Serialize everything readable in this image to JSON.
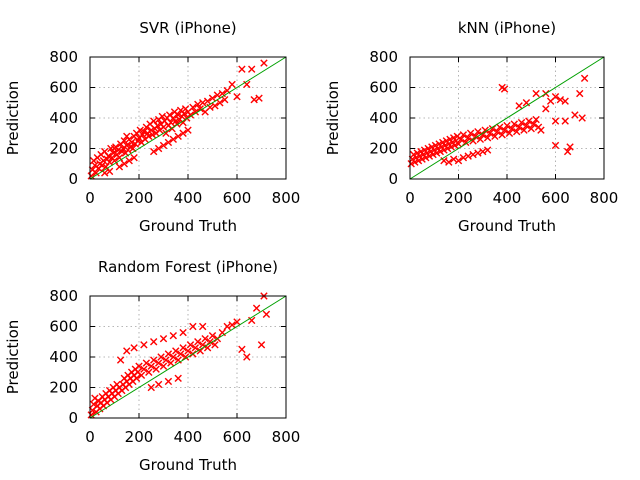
{
  "chart_data": [
    {
      "type": "scatter",
      "title": "SVR (iPhone)",
      "xlabel": "Ground Truth",
      "ylabel": "Prediction",
      "xlim": [
        0,
        800
      ],
      "ylim": [
        0,
        800
      ],
      "xticks": [
        "0",
        "200",
        "400",
        "600",
        "800"
      ],
      "yticks": [
        "0",
        "200",
        "400",
        "600",
        "800"
      ],
      "grid": true,
      "marker": "x",
      "marker_color": "#ff0000",
      "reference_line": {
        "from": [
          0,
          0
        ],
        "to": [
          800,
          800
        ],
        "color": "#00a000"
      },
      "points": [
        [
          5,
          20
        ],
        [
          10,
          60
        ],
        [
          15,
          120
        ],
        [
          20,
          90
        ],
        [
          25,
          40
        ],
        [
          30,
          140
        ],
        [
          35,
          70
        ],
        [
          40,
          100
        ],
        [
          45,
          160
        ],
        [
          50,
          90
        ],
        [
          55,
          120
        ],
        [
          60,
          180
        ],
        [
          65,
          80
        ],
        [
          70,
          130
        ],
        [
          75,
          150
        ],
        [
          80,
          110
        ],
        [
          85,
          200
        ],
        [
          90,
          140
        ],
        [
          95,
          170
        ],
        [
          100,
          120
        ],
        [
          105,
          210
        ],
        [
          110,
          160
        ],
        [
          115,
          190
        ],
        [
          120,
          140
        ],
        [
          125,
          230
        ],
        [
          130,
          180
        ],
        [
          135,
          200
        ],
        [
          140,
          250
        ],
        [
          145,
          170
        ],
        [
          150,
          220
        ],
        [
          155,
          190
        ],
        [
          160,
          260
        ],
        [
          165,
          210
        ],
        [
          170,
          240
        ],
        [
          175,
          200
        ],
        [
          180,
          280
        ],
        [
          185,
          230
        ],
        [
          190,
          300
        ],
        [
          195,
          250
        ],
        [
          200,
          270
        ],
        [
          205,
          320
        ],
        [
          210,
          240
        ],
        [
          215,
          290
        ],
        [
          220,
          310
        ],
        [
          225,
          260
        ],
        [
          230,
          340
        ],
        [
          235,
          300
        ],
        [
          240,
          280
        ],
        [
          245,
          360
        ],
        [
          250,
          320
        ],
        [
          255,
          290
        ],
        [
          260,
          380
        ],
        [
          265,
          330
        ],
        [
          270,
          300
        ],
        [
          275,
          350
        ],
        [
          280,
          390
        ],
        [
          285,
          320
        ],
        [
          290,
          360
        ],
        [
          295,
          410
        ],
        [
          300,
          340
        ],
        [
          305,
          380
        ],
        [
          310,
          300
        ],
        [
          315,
          400
        ],
        [
          320,
          350
        ],
        [
          325,
          420
        ],
        [
          330,
          370
        ],
        [
          335,
          330
        ],
        [
          340,
          400
        ],
        [
          345,
          440
        ],
        [
          350,
          380
        ],
        [
          355,
          360
        ],
        [
          360,
          420
        ],
        [
          365,
          390
        ],
        [
          370,
          450
        ],
        [
          375,
          410
        ],
        [
          380,
          370
        ],
        [
          385,
          430
        ],
        [
          390,
          460
        ],
        [
          395,
          400
        ],
        [
          400,
          440
        ],
        [
          410,
          420
        ],
        [
          420,
          470
        ],
        [
          430,
          440
        ],
        [
          440,
          490
        ],
        [
          450,
          460
        ],
        [
          460,
          500
        ],
        [
          470,
          440
        ],
        [
          480,
          510
        ],
        [
          490,
          470
        ],
        [
          500,
          530
        ],
        [
          510,
          480
        ],
        [
          520,
          550
        ],
        [
          530,
          500
        ],
        [
          540,
          560
        ],
        [
          550,
          520
        ],
        [
          560,
          580
        ],
        [
          580,
          620
        ],
        [
          600,
          540
        ],
        [
          620,
          720
        ],
        [
          640,
          620
        ],
        [
          660,
          720
        ],
        [
          670,
          520
        ],
        [
          690,
          530
        ],
        [
          710,
          760
        ],
        [
          260,
          180
        ],
        [
          280,
          200
        ],
        [
          300,
          220
        ],
        [
          320,
          240
        ],
        [
          340,
          260
        ],
        [
          360,
          280
        ],
        [
          380,
          300
        ],
        [
          400,
          320
        ],
        [
          120,
          80
        ],
        [
          140,
          100
        ],
        [
          160,
          120
        ],
        [
          180,
          140
        ],
        [
          60,
          40
        ],
        [
          80,
          50
        ],
        [
          100,
          200
        ],
        [
          150,
          280
        ]
      ]
    },
    {
      "type": "scatter",
      "title": "kNN (iPhone)",
      "xlabel": "Ground Truth",
      "ylabel": "Prediction",
      "xlim": [
        0,
        800
      ],
      "ylim": [
        0,
        800
      ],
      "xticks": [
        "0",
        "200",
        "400",
        "600",
        "800"
      ],
      "yticks": [
        "0",
        "200",
        "400",
        "600",
        "800"
      ],
      "grid": true,
      "marker": "x",
      "marker_color": "#ff0000",
      "reference_line": {
        "from": [
          0,
          0
        ],
        "to": [
          800,
          800
        ],
        "color": "#00a000"
      },
      "points": [
        [
          5,
          100
        ],
        [
          10,
          130
        ],
        [
          15,
          160
        ],
        [
          20,
          110
        ],
        [
          25,
          140
        ],
        [
          30,
          170
        ],
        [
          35,
          120
        ],
        [
          40,
          150
        ],
        [
          45,
          180
        ],
        [
          50,
          130
        ],
        [
          55,
          160
        ],
        [
          60,
          190
        ],
        [
          65,
          140
        ],
        [
          70,
          170
        ],
        [
          75,
          200
        ],
        [
          80,
          150
        ],
        [
          85,
          180
        ],
        [
          90,
          210
        ],
        [
          95,
          160
        ],
        [
          100,
          190
        ],
        [
          105,
          220
        ],
        [
          110,
          170
        ],
        [
          115,
          200
        ],
        [
          120,
          230
        ],
        [
          125,
          180
        ],
        [
          130,
          210
        ],
        [
          135,
          240
        ],
        [
          140,
          190
        ],
        [
          145,
          220
        ],
        [
          150,
          250
        ],
        [
          155,
          200
        ],
        [
          160,
          230
        ],
        [
          165,
          260
        ],
        [
          170,
          210
        ],
        [
          175,
          240
        ],
        [
          180,
          270
        ],
        [
          185,
          220
        ],
        [
          190,
          250
        ],
        [
          195,
          280
        ],
        [
          200,
          230
        ],
        [
          210,
          260
        ],
        [
          220,
          290
        ],
        [
          230,
          240
        ],
        [
          240,
          270
        ],
        [
          250,
          300
        ],
        [
          260,
          250
        ],
        [
          270,
          280
        ],
        [
          280,
          310
        ],
        [
          290,
          260
        ],
        [
          300,
          290
        ],
        [
          310,
          320
        ],
        [
          320,
          270
        ],
        [
          330,
          300
        ],
        [
          340,
          330
        ],
        [
          350,
          280
        ],
        [
          360,
          310
        ],
        [
          370,
          340
        ],
        [
          380,
          290
        ],
        [
          390,
          320
        ],
        [
          400,
          350
        ],
        [
          410,
          300
        ],
        [
          420,
          330
        ],
        [
          430,
          360
        ],
        [
          440,
          310
        ],
        [
          450,
          340
        ],
        [
          460,
          370
        ],
        [
          470,
          320
        ],
        [
          480,
          350
        ],
        [
          490,
          380
        ],
        [
          500,
          330
        ],
        [
          510,
          360
        ],
        [
          520,
          390
        ],
        [
          530,
          340
        ],
        [
          540,
          320
        ],
        [
          560,
          460
        ],
        [
          580,
          510
        ],
        [
          600,
          540
        ],
        [
          620,
          520
        ],
        [
          640,
          510
        ],
        [
          660,
          210
        ],
        [
          650,
          180
        ],
        [
          600,
          220
        ],
        [
          720,
          660
        ],
        [
          700,
          560
        ],
        [
          710,
          400
        ],
        [
          380,
          600
        ],
        [
          390,
          590
        ],
        [
          450,
          480
        ],
        [
          480,
          500
        ],
        [
          520,
          560
        ],
        [
          560,
          560
        ],
        [
          600,
          380
        ],
        [
          640,
          380
        ],
        [
          680,
          420
        ],
        [
          140,
          120
        ],
        [
          160,
          110
        ],
        [
          180,
          130
        ],
        [
          200,
          120
        ],
        [
          220,
          140
        ],
        [
          240,
          150
        ],
        [
          260,
          160
        ],
        [
          280,
          170
        ],
        [
          300,
          180
        ],
        [
          320,
          190
        ]
      ]
    },
    {
      "type": "scatter",
      "title": "Random Forest (iPhone)",
      "xlabel": "Ground Truth",
      "ylabel": "Prediction",
      "xlim": [
        0,
        800
      ],
      "ylim": [
        0,
        800
      ],
      "xticks": [
        "0",
        "200",
        "400",
        "600",
        "800"
      ],
      "yticks": [
        "0",
        "200",
        "400",
        "600",
        "800"
      ],
      "grid": true,
      "marker": "x",
      "marker_color": "#ff0000",
      "reference_line": {
        "from": [
          0,
          0
        ],
        "to": [
          800,
          800
        ],
        "color": "#00a000"
      },
      "points": [
        [
          5,
          20
        ],
        [
          10,
          50
        ],
        [
          15,
          90
        ],
        [
          20,
          130
        ],
        [
          25,
          40
        ],
        [
          30,
          80
        ],
        [
          35,
          110
        ],
        [
          40,
          60
        ],
        [
          45,
          100
        ],
        [
          50,
          140
        ],
        [
          55,
          80
        ],
        [
          60,
          120
        ],
        [
          65,
          160
        ],
        [
          70,
          100
        ],
        [
          75,
          140
        ],
        [
          80,
          180
        ],
        [
          85,
          120
        ],
        [
          90,
          160
        ],
        [
          95,
          200
        ],
        [
          100,
          140
        ],
        [
          105,
          180
        ],
        [
          110,
          220
        ],
        [
          115,
          160
        ],
        [
          120,
          200
        ],
        [
          125,
          380
        ],
        [
          130,
          180
        ],
        [
          135,
          220
        ],
        [
          140,
          260
        ],
        [
          145,
          200
        ],
        [
          150,
          240
        ],
        [
          155,
          280
        ],
        [
          160,
          220
        ],
        [
          165,
          260
        ],
        [
          170,
          300
        ],
        [
          175,
          240
        ],
        [
          180,
          280
        ],
        [
          185,
          320
        ],
        [
          190,
          260
        ],
        [
          195,
          300
        ],
        [
          200,
          340
        ],
        [
          210,
          280
        ],
        [
          220,
          320
        ],
        [
          230,
          360
        ],
        [
          240,
          300
        ],
        [
          250,
          340
        ],
        [
          260,
          380
        ],
        [
          270,
          320
        ],
        [
          280,
          360
        ],
        [
          290,
          400
        ],
        [
          300,
          340
        ],
        [
          310,
          380
        ],
        [
          320,
          420
        ],
        [
          330,
          360
        ],
        [
          340,
          400
        ],
        [
          350,
          440
        ],
        [
          360,
          380
        ],
        [
          370,
          420
        ],
        [
          380,
          460
        ],
        [
          390,
          400
        ],
        [
          400,
          440
        ],
        [
          410,
          480
        ],
        [
          420,
          420
        ],
        [
          430,
          460
        ],
        [
          440,
          500
        ],
        [
          450,
          440
        ],
        [
          460,
          480
        ],
        [
          470,
          520
        ],
        [
          480,
          460
        ],
        [
          490,
          500
        ],
        [
          500,
          540
        ],
        [
          510,
          480
        ],
        [
          520,
          520
        ],
        [
          540,
          560
        ],
        [
          560,
          600
        ],
        [
          580,
          610
        ],
        [
          600,
          630
        ],
        [
          620,
          450
        ],
        [
          640,
          400
        ],
        [
          660,
          640
        ],
        [
          680,
          720
        ],
        [
          700,
          480
        ],
        [
          710,
          800
        ],
        [
          720,
          680
        ],
        [
          150,
          440
        ],
        [
          180,
          460
        ],
        [
          220,
          480
        ],
        [
          260,
          500
        ],
        [
          300,
          520
        ],
        [
          340,
          540
        ],
        [
          380,
          560
        ],
        [
          420,
          600
        ],
        [
          460,
          600
        ],
        [
          250,
          200
        ],
        [
          280,
          220
        ],
        [
          320,
          240
        ],
        [
          360,
          260
        ]
      ]
    }
  ]
}
